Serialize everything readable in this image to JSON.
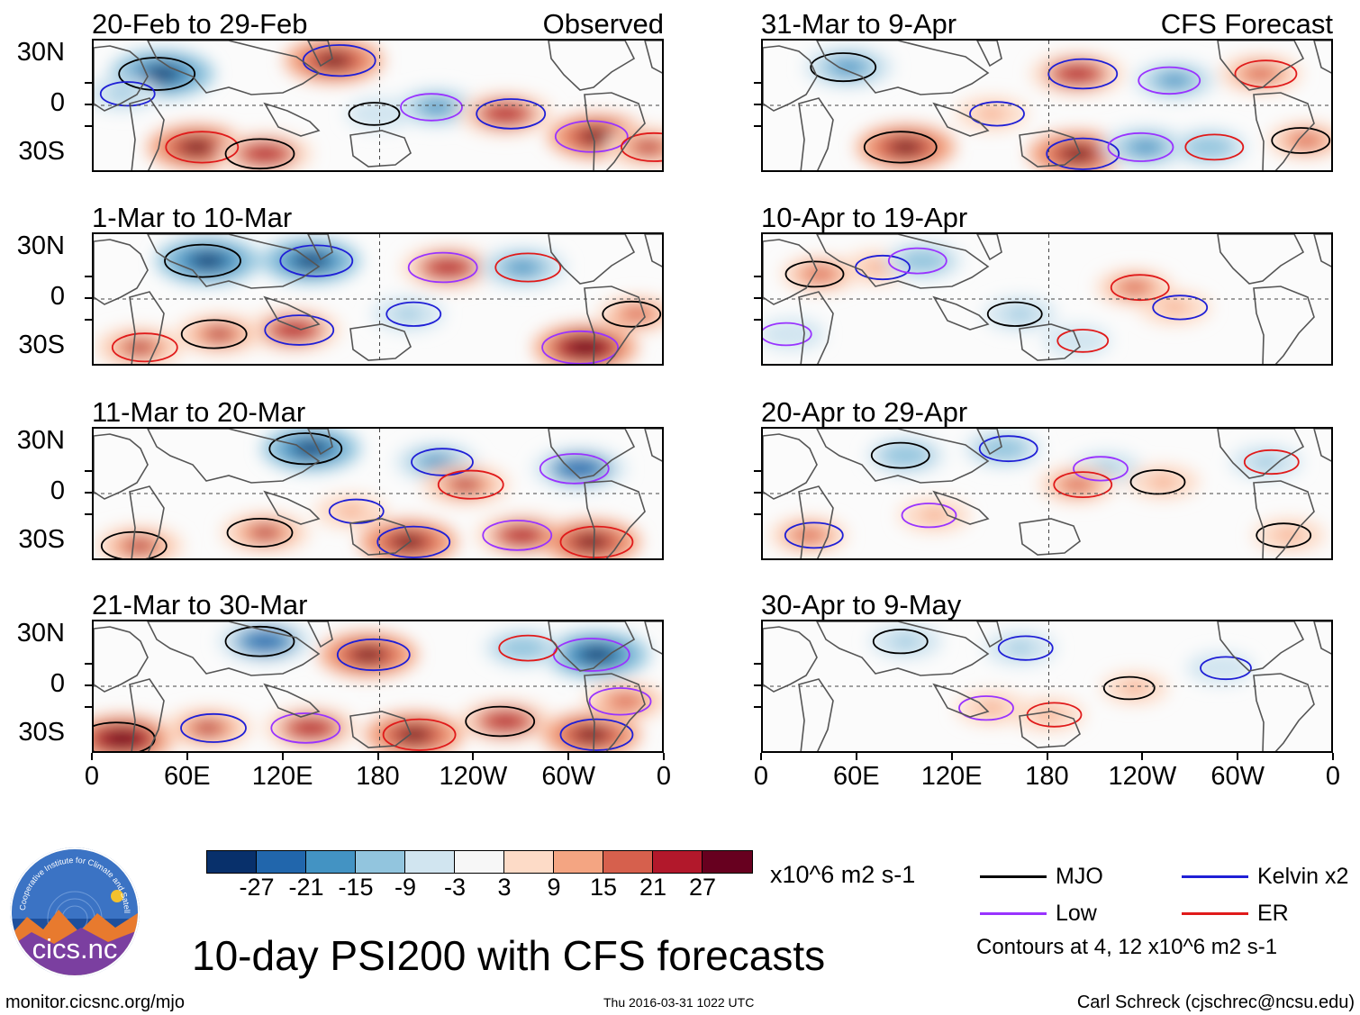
{
  "panels": [
    {
      "title": "20-Feb to 29-Feb",
      "tag": "Observed",
      "anoms": [
        [
          0.12,
          0.25,
          -1.0
        ],
        [
          0.42,
          0.15,
          0.9
        ],
        [
          0.6,
          0.5,
          -0.6
        ],
        [
          0.18,
          0.8,
          0.9
        ],
        [
          0.3,
          0.85,
          0.8
        ],
        [
          0.72,
          0.55,
          0.8
        ],
        [
          0.88,
          0.72,
          0.9
        ],
        [
          0.97,
          0.8,
          0.7
        ],
        [
          0.5,
          0.55,
          -0.3
        ],
        [
          0.05,
          0.4,
          -0.4
        ]
      ]
    },
    {
      "title": "1-Mar to 10-Mar",
      "tag": "",
      "anoms": [
        [
          0.2,
          0.2,
          -1.0
        ],
        [
          0.38,
          0.2,
          -0.9
        ],
        [
          0.62,
          0.25,
          0.8
        ],
        [
          0.75,
          0.25,
          -0.7
        ],
        [
          0.22,
          0.75,
          0.7
        ],
        [
          0.35,
          0.72,
          0.8
        ],
        [
          0.86,
          0.85,
          1.0
        ],
        [
          0.08,
          0.85,
          0.7
        ],
        [
          0.95,
          0.6,
          0.5
        ],
        [
          0.55,
          0.6,
          -0.4
        ]
      ]
    },
    {
      "title": "11-Mar to 20-Mar",
      "tag": "",
      "anoms": [
        [
          0.38,
          0.15,
          -0.9
        ],
        [
          0.6,
          0.25,
          -0.6
        ],
        [
          0.85,
          0.3,
          -0.8
        ],
        [
          0.65,
          0.42,
          0.7
        ],
        [
          0.3,
          0.78,
          0.7
        ],
        [
          0.55,
          0.85,
          0.9
        ],
        [
          0.75,
          0.8,
          0.8
        ],
        [
          0.87,
          0.85,
          0.9
        ],
        [
          0.08,
          0.88,
          0.7
        ],
        [
          0.45,
          0.62,
          0.4
        ]
      ]
    },
    {
      "title": "21-Mar to 30-Mar",
      "tag": "",
      "anoms": [
        [
          0.3,
          0.15,
          -0.8
        ],
        [
          0.48,
          0.25,
          0.9
        ],
        [
          0.88,
          0.25,
          -1.0
        ],
        [
          0.75,
          0.2,
          -0.5
        ],
        [
          0.05,
          0.88,
          1.0
        ],
        [
          0.2,
          0.8,
          0.7
        ],
        [
          0.38,
          0.8,
          0.8
        ],
        [
          0.56,
          0.85,
          0.9
        ],
        [
          0.72,
          0.75,
          0.8
        ],
        [
          0.87,
          0.85,
          0.9
        ],
        [
          0.93,
          0.6,
          0.6
        ]
      ]
    },
    {
      "title": "31-Mar to 9-Apr",
      "tag": "CFS Forecast",
      "anoms": [
        [
          0.15,
          0.2,
          -0.7
        ],
        [
          0.55,
          0.25,
          0.8
        ],
        [
          0.72,
          0.3,
          -0.6
        ],
        [
          0.87,
          0.25,
          0.6
        ],
        [
          0.25,
          0.8,
          0.9
        ],
        [
          0.55,
          0.85,
          0.9
        ],
        [
          0.67,
          0.8,
          -0.7
        ],
        [
          0.78,
          0.8,
          -0.5
        ],
        [
          0.95,
          0.75,
          0.5
        ],
        [
          0.4,
          0.55,
          0.4
        ]
      ]
    },
    {
      "title": "10-Apr to 19-Apr",
      "tag": "",
      "anoms": [
        [
          0.1,
          0.3,
          0.5
        ],
        [
          0.2,
          0.25,
          0.4
        ],
        [
          0.28,
          0.2,
          -0.5
        ],
        [
          0.65,
          0.4,
          0.5
        ],
        [
          0.45,
          0.6,
          -0.4
        ],
        [
          0.72,
          0.55,
          0.4
        ],
        [
          0.05,
          0.75,
          -0.3
        ],
        [
          0.55,
          0.8,
          -0.3
        ]
      ]
    },
    {
      "title": "20-Apr to 29-Apr",
      "tag": "",
      "anoms": [
        [
          0.25,
          0.2,
          -0.5
        ],
        [
          0.42,
          0.15,
          -0.5
        ],
        [
          0.6,
          0.3,
          -0.4
        ],
        [
          0.55,
          0.42,
          0.5
        ],
        [
          0.7,
          0.4,
          0.4
        ],
        [
          0.08,
          0.8,
          0.5
        ],
        [
          0.3,
          0.65,
          0.4
        ],
        [
          0.88,
          0.25,
          -0.4
        ],
        [
          0.92,
          0.8,
          0.4
        ]
      ]
    },
    {
      "title": "30-Apr to 9-May",
      "tag": "",
      "anoms": [
        [
          0.25,
          0.15,
          -0.4
        ],
        [
          0.45,
          0.2,
          -0.4
        ],
        [
          0.4,
          0.65,
          0.4
        ],
        [
          0.5,
          0.7,
          0.4
        ],
        [
          0.65,
          0.5,
          0.3
        ],
        [
          0.8,
          0.35,
          -0.3
        ]
      ]
    }
  ],
  "lat_labels": [
    "30N",
    "0",
    "30S"
  ],
  "lon_labels": [
    "0",
    "60E",
    "120E",
    "180",
    "120W",
    "60W",
    "0"
  ],
  "colorbar": {
    "colors": [
      "#08306b",
      "#2166ac",
      "#4393c3",
      "#92c5de",
      "#d1e5f0",
      "#f7f7f7",
      "#fddbc7",
      "#f4a582",
      "#d6604d",
      "#b2182b",
      "#67001f"
    ],
    "labels": [
      "-27",
      "-21",
      "-15",
      "-9",
      "-3",
      "3",
      "9",
      "15",
      "21",
      "27"
    ],
    "units": "x10^6 m2 s-1"
  },
  "legend": [
    {
      "label": "MJO",
      "color": "#000000"
    },
    {
      "label": "Kelvin x2",
      "color": "#1f1fd6"
    },
    {
      "label": "Low",
      "color": "#9933ff"
    },
    {
      "label": "ER",
      "color": "#e01a1a"
    }
  ],
  "contour_note": "Contours at 4, 12 x10^6 m2 s-1",
  "logo": {
    "text": "cics.nc",
    "ring_text": "Cooperative Institute for Climate and Satellites"
  },
  "main_title": "10-day PSI200 with CFS forecasts",
  "footer": {
    "url": "monitor.cicsnc.org/mjo",
    "timestamp": "Thu 2016-03-31 1022 UTC",
    "author": "Carl Schreck (cjschrec@ncsu.edu)"
  }
}
